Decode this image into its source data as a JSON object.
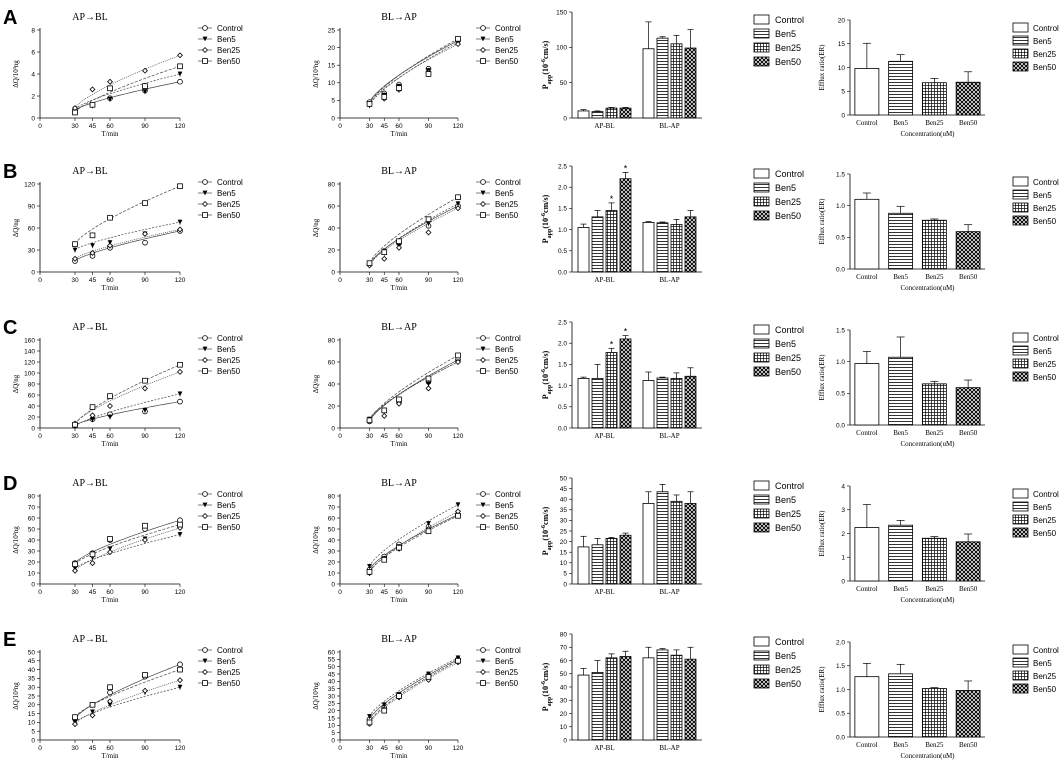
{
  "rows": [
    "A",
    "B",
    "C",
    "D",
    "E"
  ],
  "legend": [
    "Control",
    "Ben5",
    "Ben25",
    "Ben50"
  ],
  "time": {
    "xlabel": "T/min",
    "xticks": [
      0,
      30,
      45,
      60,
      90,
      120
    ],
    "x_values": [
      30,
      45,
      60,
      90,
      120
    ],
    "titles": [
      "AP→BL",
      "BL→AP"
    ]
  },
  "papp": {
    "groups": [
      "AP-BL",
      "BL-AP"
    ],
    "ylabel_main": "P",
    "ylabel_sub": "app",
    "ylabel_rest": "(10",
    "ylabel_exp": "-6",
    "ylabel_end": "cm/s)"
  },
  "er": {
    "categories": [
      "Control",
      "Ben5",
      "Ben25",
      "Ben50"
    ],
    "ylabel": "Efflux ratio(ER)",
    "xlabel": "Concentration(uM)"
  },
  "colors": {
    "ink": "#000000",
    "fit": "#444444"
  },
  "chart_data": [
    {
      "id": "A-AP-BL",
      "type": "line",
      "title": "AP→BL",
      "xlabel": "T/min",
      "ylabel": "ΔQ/10³ng",
      "ylim": [
        0,
        8
      ],
      "yticks": [
        0,
        2,
        4,
        6,
        8
      ],
      "x": [
        30,
        45,
        60,
        90,
        120
      ],
      "series": [
        {
          "name": "Control",
          "values": [
            0.7,
            1.2,
            1.8,
            2.5,
            3.3
          ]
        },
        {
          "name": "Ben5",
          "values": [
            0.8,
            1.1,
            1.7,
            2.4,
            4.0
          ]
        },
        {
          "name": "Ben25",
          "values": [
            0.9,
            2.6,
            3.3,
            4.3,
            5.7
          ]
        },
        {
          "name": "Ben50",
          "values": [
            0.5,
            1.2,
            2.7,
            2.9,
            4.7
          ]
        }
      ]
    },
    {
      "id": "A-BL-AP",
      "type": "line",
      "title": "BL→AP",
      "xlabel": "T/min",
      "ylabel": "ΔQ/10³ng",
      "ylim": [
        0,
        25
      ],
      "yticks": [
        0,
        5,
        10,
        15,
        20,
        25
      ],
      "x": [
        30,
        45,
        60,
        90,
        120
      ],
      "series": [
        {
          "name": "Control",
          "values": [
            4.5,
            7.0,
            9.5,
            14.0,
            22.0
          ]
        },
        {
          "name": "Ben5",
          "values": [
            3.5,
            6.5,
            9.0,
            13.5,
            21.5
          ]
        },
        {
          "name": "Ben25",
          "values": [
            4.0,
            5.5,
            8.0,
            13.0,
            21.0
          ]
        },
        {
          "name": "Ben50",
          "values": [
            4.0,
            6.0,
            8.5,
            12.5,
            22.5
          ]
        }
      ]
    },
    {
      "id": "A-Papp",
      "type": "bar",
      "ylabel": "Papp(10-6cm/s)",
      "ylim": [
        0,
        150
      ],
      "yticks": [
        0,
        50,
        100,
        150
      ],
      "categories": [
        "AP-BL",
        "BL-AP"
      ],
      "series": [
        {
          "name": "Control",
          "values": [
            10,
            98
          ],
          "errors": [
            2,
            38
          ]
        },
        {
          "name": "Ben5",
          "values": [
            9,
            113
          ],
          "errors": [
            1,
            2
          ]
        },
        {
          "name": "Ben25",
          "values": [
            14,
            105
          ],
          "errors": [
            1,
            12
          ]
        },
        {
          "name": "Ben50",
          "values": [
            14,
            99
          ],
          "errors": [
            1,
            26
          ]
        }
      ]
    },
    {
      "id": "A-ER",
      "type": "bar",
      "ylabel": "Efflux ratio(ER)",
      "xlabel": "Concentration(uM)",
      "ylim": [
        0,
        20
      ],
      "yticks": [
        0,
        5,
        10,
        15,
        20
      ],
      "categories": [
        "Control",
        "Ben5",
        "Ben25",
        "Ben50"
      ],
      "values": [
        9.8,
        11.3,
        6.8,
        6.9
      ],
      "errors": [
        5.3,
        1.4,
        0.9,
        2.2
      ]
    },
    {
      "id": "B-AP-BL",
      "type": "line",
      "title": "AP→BL",
      "xlabel": "T/min",
      "ylabel": "ΔQ/ng",
      "ylim": [
        0,
        120
      ],
      "yticks": [
        0,
        30,
        60,
        90,
        120
      ],
      "x": [
        30,
        45,
        60,
        90,
        120
      ],
      "series": [
        {
          "name": "Control",
          "values": [
            15,
            22,
            33,
            40,
            56
          ]
        },
        {
          "name": "Ben5",
          "values": [
            30,
            36,
            40,
            52,
            68
          ]
        },
        {
          "name": "Ben25",
          "values": [
            18,
            26,
            36,
            52,
            58
          ]
        },
        {
          "name": "Ben50",
          "values": [
            38,
            50,
            74,
            94,
            117
          ]
        }
      ]
    },
    {
      "id": "B-BL-AP",
      "type": "line",
      "title": "BL→AP",
      "xlabel": "T/min",
      "ylabel": "ΔQ/ng",
      "ylim": [
        0,
        80
      ],
      "yticks": [
        0,
        20,
        40,
        60,
        80
      ],
      "x": [
        30,
        45,
        60,
        90,
        120
      ],
      "series": [
        {
          "name": "Control",
          "values": [
            7,
            19,
            26,
            42,
            60
          ]
        },
        {
          "name": "Ben5",
          "values": [
            6,
            17,
            24,
            44,
            62
          ]
        },
        {
          "name": "Ben25",
          "values": [
            6,
            12,
            22,
            36,
            58
          ]
        },
        {
          "name": "Ben50",
          "values": [
            8,
            18,
            28,
            48,
            68
          ]
        }
      ]
    },
    {
      "id": "B-Papp",
      "type": "bar",
      "ylabel": "Papp(10-6cm/s)",
      "ylim": [
        0,
        2.5
      ],
      "yticks": [
        0.0,
        0.5,
        1.0,
        1.5,
        2.0,
        2.5
      ],
      "categories": [
        "AP-BL",
        "BL-AP"
      ],
      "annotations": [
        {
          "text": "*",
          "series": "Ben25",
          "category": "AP-BL"
        },
        {
          "text": "*",
          "series": "Ben50",
          "category": "AP-BL"
        }
      ],
      "series": [
        {
          "name": "Control",
          "values": [
            1.05,
            1.17
          ],
          "errors": [
            0.08,
            0.02
          ]
        },
        {
          "name": "Ben5",
          "values": [
            1.3,
            1.16
          ],
          "errors": [
            0.15,
            0.02
          ]
        },
        {
          "name": "Ben25",
          "values": [
            1.45,
            1.12
          ],
          "errors": [
            0.18,
            0.12
          ]
        },
        {
          "name": "Ben50",
          "values": [
            2.2,
            1.3
          ],
          "errors": [
            0.15,
            0.15
          ]
        }
      ]
    },
    {
      "id": "B-ER",
      "type": "bar",
      "ylabel": "Efflux ratio(ER)",
      "xlabel": "Concentration(uM)",
      "ylim": [
        0,
        1.5
      ],
      "yticks": [
        0.0,
        0.5,
        1.0,
        1.5
      ],
      "categories": [
        "Control",
        "Ben5",
        "Ben25",
        "Ben50"
      ],
      "values": [
        1.1,
        0.88,
        0.77,
        0.59
      ],
      "errors": [
        0.1,
        0.11,
        0.02,
        0.11
      ]
    },
    {
      "id": "C-AP-BL",
      "type": "line",
      "title": "AP→BL",
      "xlabel": "T/min",
      "ylabel": "ΔQ/ng",
      "ylim": [
        0,
        160
      ],
      "yticks": [
        0,
        20,
        40,
        60,
        80,
        100,
        120,
        140,
        160
      ],
      "x": [
        30,
        45,
        60,
        90,
        120
      ],
      "series": [
        {
          "name": "Control",
          "values": [
            5,
            16,
            25,
            30,
            48
          ]
        },
        {
          "name": "Ben5",
          "values": [
            3,
            15,
            20,
            32,
            62
          ]
        },
        {
          "name": "Ben25",
          "values": [
            8,
            23,
            40,
            72,
            102
          ]
        },
        {
          "name": "Ben50",
          "values": [
            6,
            38,
            58,
            86,
            115
          ]
        }
      ]
    },
    {
      "id": "C-BL-AP",
      "type": "line",
      "title": "BL→AP",
      "xlabel": "T/min",
      "ylabel": "ΔQ/ng",
      "ylim": [
        0,
        80
      ],
      "yticks": [
        0,
        20,
        40,
        60,
        80
      ],
      "x": [
        30,
        45,
        60,
        90,
        120
      ],
      "series": [
        {
          "name": "Control",
          "values": [
            6,
            16,
            24,
            42,
            62
          ]
        },
        {
          "name": "Ben5",
          "values": [
            8,
            15,
            22,
            40,
            60
          ]
        },
        {
          "name": "Ben25",
          "values": [
            7,
            11,
            22,
            36,
            60
          ]
        },
        {
          "name": "Ben50",
          "values": [
            7,
            16,
            26,
            45,
            66
          ]
        }
      ]
    },
    {
      "id": "C-Papp",
      "type": "bar",
      "ylabel": "Papp(10-6cm/s)",
      "ylim": [
        0,
        2.5
      ],
      "yticks": [
        0.0,
        0.5,
        1.0,
        1.5,
        2.0,
        2.5
      ],
      "categories": [
        "AP-BL",
        "BL-AP"
      ],
      "annotations": [
        {
          "text": "*",
          "series": "Ben25",
          "category": "AP-BL"
        },
        {
          "text": "*",
          "series": "Ben50",
          "category": "AP-BL"
        }
      ],
      "series": [
        {
          "name": "Control",
          "values": [
            1.17,
            1.12
          ],
          "errors": [
            0.03,
            0.2
          ]
        },
        {
          "name": "Ben5",
          "values": [
            1.17,
            1.18
          ],
          "errors": [
            0.33,
            0.02
          ]
        },
        {
          "name": "Ben25",
          "values": [
            1.78,
            1.17
          ],
          "errors": [
            0.1,
            0.13
          ]
        },
        {
          "name": "Ben50",
          "values": [
            2.1,
            1.22
          ],
          "errors": [
            0.08,
            0.2
          ]
        }
      ]
    },
    {
      "id": "C-ER",
      "type": "bar",
      "ylabel": "Efflux ratio(ER)",
      "xlabel": "Concentration(uM)",
      "ylim": [
        0,
        1.5
      ],
      "yticks": [
        0.0,
        0.5,
        1.0,
        1.5
      ],
      "categories": [
        "Control",
        "Ben5",
        "Ben25",
        "Ben50"
      ],
      "values": [
        0.97,
        1.07,
        0.65,
        0.59
      ],
      "errors": [
        0.19,
        0.32,
        0.04,
        0.12
      ]
    },
    {
      "id": "D-AP-BL",
      "type": "line",
      "title": "AP→BL",
      "xlabel": "T/min",
      "ylabel": "ΔQ/10²ng",
      "ylim": [
        0,
        80
      ],
      "yticks": [
        0,
        10,
        20,
        30,
        40,
        50,
        60,
        70,
        80
      ],
      "x": [
        30,
        45,
        60,
        90,
        120
      ],
      "series": [
        {
          "name": "Control",
          "values": [
            19,
            28,
            40,
            50,
            58
          ]
        },
        {
          "name": "Ben5",
          "values": [
            14,
            24,
            32,
            41,
            45
          ]
        },
        {
          "name": "Ben25",
          "values": [
            12,
            19,
            29,
            40,
            51
          ]
        },
        {
          "name": "Ben50",
          "values": [
            18,
            27,
            41,
            53,
            54
          ]
        }
      ]
    },
    {
      "id": "D-BL-AP",
      "type": "line",
      "title": "BL→AP",
      "xlabel": "T/min",
      "ylabel": "ΔQ/10²ng",
      "ylim": [
        0,
        80
      ],
      "yticks": [
        0,
        10,
        20,
        30,
        40,
        50,
        60,
        70,
        80
      ],
      "x": [
        30,
        45,
        60,
        90,
        120
      ],
      "series": [
        {
          "name": "Control",
          "values": [
            13,
            25,
            36,
            52,
            63
          ]
        },
        {
          "name": "Ben5",
          "values": [
            16,
            23,
            34,
            55,
            72
          ]
        },
        {
          "name": "Ben25",
          "values": [
            10,
            23,
            32,
            50,
            66
          ]
        },
        {
          "name": "Ben50",
          "values": [
            11,
            22,
            33,
            48,
            62
          ]
        }
      ]
    },
    {
      "id": "D-Papp",
      "type": "bar",
      "ylabel": "Papp(10-6cm/s)",
      "ylim": [
        0,
        50
      ],
      "yticks": [
        0,
        5,
        10,
        15,
        20,
        25,
        30,
        35,
        40,
        45,
        50
      ],
      "categories": [
        "AP-BL",
        "BL-AP"
      ],
      "series": [
        {
          "name": "Control",
          "values": [
            17.5,
            38
          ],
          "errors": [
            5,
            5.5
          ]
        },
        {
          "name": "Ben5",
          "values": [
            18.5,
            43.5
          ],
          "errors": [
            3,
            3.5
          ]
        },
        {
          "name": "Ben25",
          "values": [
            21.5,
            39
          ],
          "errors": [
            0.5,
            3
          ]
        },
        {
          "name": "Ben50",
          "values": [
            23,
            38
          ],
          "errors": [
            1,
            5.5
          ]
        }
      ]
    },
    {
      "id": "D-ER",
      "type": "bar",
      "ylabel": "Efflux ratio(ER)",
      "xlabel": "Concentration(uM)",
      "ylim": [
        0,
        4
      ],
      "yticks": [
        0,
        1,
        2,
        3,
        4
      ],
      "categories": [
        "Control",
        "Ben5",
        "Ben25",
        "Ben50"
      ],
      "values": [
        2.25,
        2.35,
        1.8,
        1.65
      ],
      "errors": [
        0.97,
        0.2,
        0.07,
        0.33
      ]
    },
    {
      "id": "E-AP-BL",
      "type": "line",
      "title": "AP→BL",
      "xlabel": "T/min",
      "ylabel": "ΔQ/10²ng",
      "ylim": [
        0,
        50
      ],
      "yticks": [
        0,
        5,
        10,
        15,
        20,
        25,
        30,
        35,
        40,
        45,
        50
      ],
      "x": [
        30,
        45,
        60,
        90,
        120
      ],
      "series": [
        {
          "name": "Control",
          "values": [
            12,
            20,
            27,
            36,
            43
          ]
        },
        {
          "name": "Ben5",
          "values": [
            10,
            16,
            20,
            27,
            30
          ]
        },
        {
          "name": "Ben25",
          "values": [
            9,
            14,
            22,
            28,
            34
          ]
        },
        {
          "name": "Ben50",
          "values": [
            13,
            20,
            30,
            37,
            40
          ]
        }
      ]
    },
    {
      "id": "E-BL-AP",
      "type": "line",
      "title": "BL→AP",
      "xlabel": "T/min",
      "ylabel": "ΔQ/10²ng",
      "ylim": [
        0,
        60
      ],
      "yticks": [
        0,
        5,
        10,
        15,
        20,
        25,
        30,
        35,
        40,
        45,
        50,
        55,
        60
      ],
      "x": [
        30,
        45,
        60,
        90,
        120
      ],
      "series": [
        {
          "name": "Control",
          "values": [
            14,
            22,
            30,
            44,
            55
          ]
        },
        {
          "name": "Ben5",
          "values": [
            16,
            24,
            31,
            45,
            56
          ]
        },
        {
          "name": "Ben25",
          "values": [
            11,
            21,
            29,
            41,
            53
          ]
        },
        {
          "name": "Ben50",
          "values": [
            12,
            20,
            30,
            43,
            54
          ]
        }
      ]
    },
    {
      "id": "E-Papp",
      "type": "bar",
      "ylabel": "Papp(10-6cm/s)",
      "ylim": [
        0,
        80
      ],
      "yticks": [
        0,
        10,
        20,
        30,
        40,
        50,
        60,
        70,
        80
      ],
      "categories": [
        "AP-BL",
        "BL-AP"
      ],
      "series": [
        {
          "name": "Control",
          "values": [
            49,
            62
          ],
          "errors": [
            5,
            8
          ]
        },
        {
          "name": "Ben5",
          "values": [
            51,
            68
          ],
          "errors": [
            9,
            1
          ]
        },
        {
          "name": "Ben25",
          "values": [
            62,
            64
          ],
          "errors": [
            3,
            4
          ]
        },
        {
          "name": "Ben50",
          "values": [
            63,
            61
          ],
          "errors": [
            4,
            9
          ]
        }
      ]
    },
    {
      "id": "E-ER",
      "type": "bar",
      "ylabel": "Efflux ratio(ER)",
      "xlabel": "Concentration(uM)",
      "ylim": [
        0,
        2.0
      ],
      "yticks": [
        0.0,
        0.5,
        1.0,
        1.5,
        2.0
      ],
      "categories": [
        "Control",
        "Ben5",
        "Ben25",
        "Ben50"
      ],
      "values": [
        1.27,
        1.33,
        1.02,
        0.98
      ],
      "errors": [
        0.28,
        0.2,
        0.02,
        0.2
      ]
    }
  ]
}
